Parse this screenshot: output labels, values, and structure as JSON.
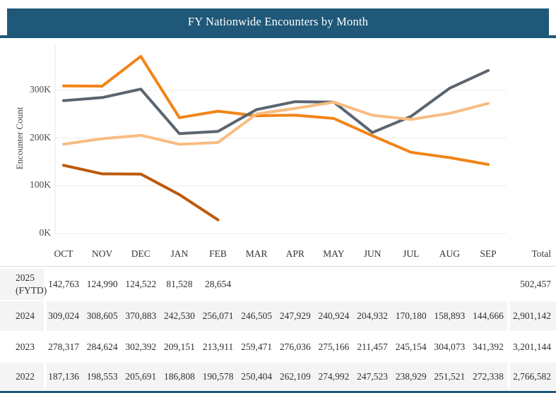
{
  "title": "FY Nationwide Encounters by Month",
  "colors": {
    "header_bar": "#1f5878",
    "grid_line": "#ececec",
    "axis_line": "#e5e5e5"
  },
  "chart_data": {
    "type": "line",
    "title": "FY Nationwide Encounters by Month",
    "xlabel": "",
    "ylabel": "Encounter Count",
    "categories": [
      "OCT",
      "NOV",
      "DEC",
      "JAN",
      "FEB",
      "MAR",
      "APR",
      "MAY",
      "JUN",
      "JUL",
      "AUG",
      "SEP"
    ],
    "ylim": [
      0,
      400000
    ],
    "grid": true,
    "legend_position": "none",
    "y_ticks": [
      {
        "value": 0,
        "label": "0K"
      },
      {
        "value": 100000,
        "label": "100K"
      },
      {
        "value": 200000,
        "label": "200K"
      },
      {
        "value": 300000,
        "label": "300K"
      }
    ],
    "series": [
      {
        "name": "2025 (FYTD)",
        "color": "#bc5a0c",
        "values": [
          142763,
          124990,
          124522,
          81528,
          28654,
          null,
          null,
          null,
          null,
          null,
          null,
          null
        ]
      },
      {
        "name": "2024",
        "color": "#f28417",
        "values": [
          309024,
          308605,
          370883,
          242530,
          256071,
          246505,
          247929,
          240924,
          204932,
          170180,
          158893,
          144666
        ]
      },
      {
        "name": "2023",
        "color": "#5a6570",
        "values": [
          278317,
          284624,
          302392,
          209151,
          213911,
          259471,
          276036,
          275166,
          211457,
          245154,
          304073,
          341392
        ]
      },
      {
        "name": "2022",
        "color": "#f8bc80",
        "values": [
          187136,
          198553,
          205691,
          186808,
          190578,
          250404,
          262109,
          274992,
          247523,
          238929,
          251521,
          272338
        ]
      }
    ]
  },
  "table": {
    "total_header": "Total",
    "rows": [
      {
        "label": "2025 (FYTD)",
        "label_lines": [
          "2025",
          "(FYTD)"
        ],
        "values": [
          "142,763",
          "124,990",
          "124,522",
          "81,528",
          "28,654",
          "",
          "",
          "",
          "",
          "",
          "",
          ""
        ],
        "total": "502,457"
      },
      {
        "label": "2024",
        "label_lines": [
          "2024"
        ],
        "values": [
          "309,024",
          "308,605",
          "370,883",
          "242,530",
          "256,071",
          "246,505",
          "247,929",
          "240,924",
          "204,932",
          "170,180",
          "158,893",
          "144,666"
        ],
        "total": "2,901,142"
      },
      {
        "label": "2023",
        "label_lines": [
          "2023"
        ],
        "values": [
          "278,317",
          "284,624",
          "302,392",
          "209,151",
          "213,911",
          "259,471",
          "276,036",
          "275,166",
          "211,457",
          "245,154",
          "304,073",
          "341,392"
        ],
        "total": "3,201,144"
      },
      {
        "label": "2022",
        "label_lines": [
          "2022"
        ],
        "values": [
          "187,136",
          "198,553",
          "205,691",
          "186,808",
          "190,578",
          "250,404",
          "262,109",
          "274,992",
          "247,523",
          "238,929",
          "251,521",
          "272,338"
        ],
        "total": "2,766,582"
      }
    ]
  }
}
